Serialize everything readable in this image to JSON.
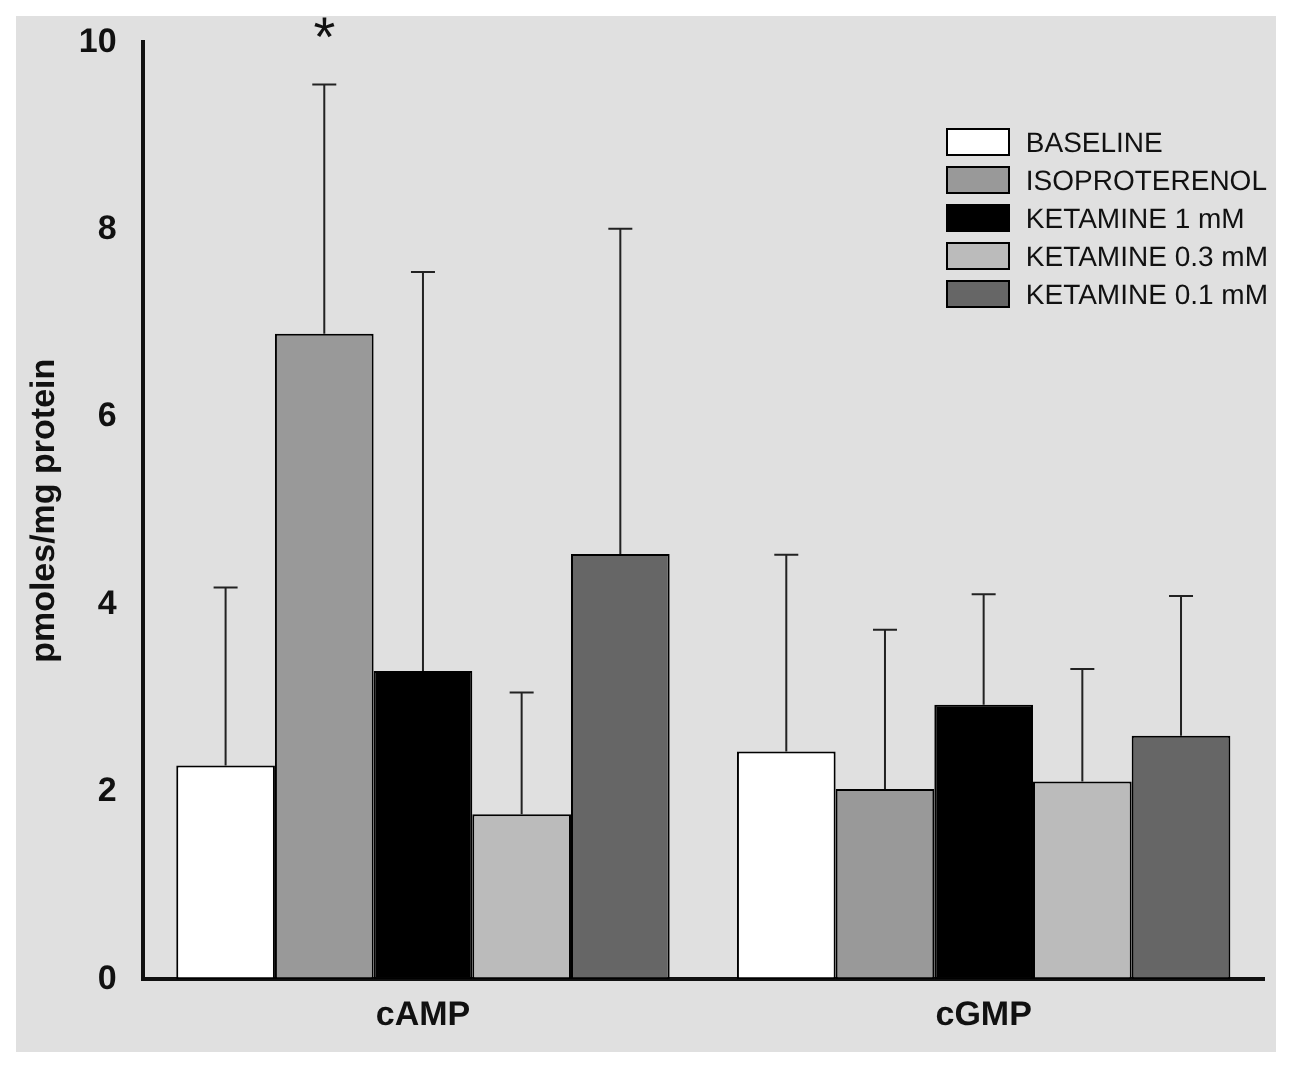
{
  "chart_data": {
    "type": "bar",
    "ylabel": "pmoles/mg protein",
    "categories": [
      "cAMP",
      "cGMP"
    ],
    "series": [
      {
        "name": "BASELINE",
        "color": "#ffffff",
        "values": [
          2.28,
          2.43
        ],
        "errors": [
          [
            2.28,
            4.18
          ],
          [
            2.43,
            4.53
          ]
        ]
      },
      {
        "name": "ISOPROTERENOL",
        "color": "#999999",
        "values": [
          6.89,
          2.03
        ],
        "errors": [
          [
            6.89,
            9.55
          ],
          [
            2.03,
            3.73
          ]
        ]
      },
      {
        "name": "KETAMINE 1 mM",
        "color": "#000000",
        "values": [
          3.29,
          2.93
        ],
        "errors": [
          [
            3.29,
            7.55
          ],
          [
            2.93,
            4.11
          ]
        ]
      },
      {
        "name": "KETAMINE 0.3 mM",
        "color": "#bbbbbb",
        "values": [
          1.76,
          2.11
        ],
        "errors": [
          [
            1.76,
            3.06
          ],
          [
            2.11,
            3.31
          ]
        ]
      },
      {
        "name": "KETAMINE 0.1 mM",
        "color": "#666666",
        "values": [
          4.54,
          2.6
        ],
        "errors": [
          [
            4.54,
            8.01
          ],
          [
            2.6,
            4.09
          ]
        ]
      }
    ],
    "ylim": [
      0,
      10
    ],
    "yticks": [
      0,
      2,
      4,
      6,
      8,
      10
    ],
    "grid": false,
    "legend": "top right",
    "annotations": [
      "*"
    ]
  }
}
